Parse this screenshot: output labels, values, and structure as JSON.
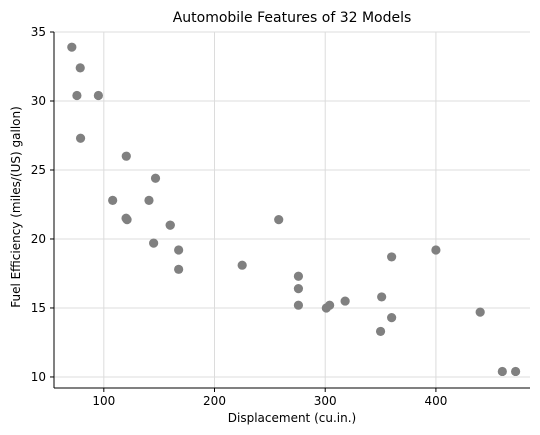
{
  "chart_data": {
    "type": "scatter",
    "title": "Automobile Features of 32 Models",
    "xlabel": "Displacement (cu.in.)",
    "ylabel": "Fuel Efficiency (miles/(US) gallon)",
    "xlim": [
      55,
      485
    ],
    "ylim": [
      9.2,
      35
    ],
    "xticks": [
      100,
      200,
      300,
      400
    ],
    "yticks": [
      10,
      15,
      20,
      25,
      30,
      35
    ],
    "grid": true,
    "point_color": "#808080",
    "points": [
      {
        "x": 160,
        "y": 21.0
      },
      {
        "x": 160,
        "y": 21.0
      },
      {
        "x": 108,
        "y": 22.8
      },
      {
        "x": 258,
        "y": 21.4
      },
      {
        "x": 360,
        "y": 18.7
      },
      {
        "x": 225,
        "y": 18.1
      },
      {
        "x": 360,
        "y": 14.3
      },
      {
        "x": 146.7,
        "y": 24.4
      },
      {
        "x": 140.8,
        "y": 22.8
      },
      {
        "x": 167.6,
        "y": 19.2
      },
      {
        "x": 167.6,
        "y": 17.8
      },
      {
        "x": 275.8,
        "y": 16.4
      },
      {
        "x": 275.8,
        "y": 17.3
      },
      {
        "x": 275.8,
        "y": 15.2
      },
      {
        "x": 472,
        "y": 10.4
      },
      {
        "x": 460,
        "y": 10.4
      },
      {
        "x": 440,
        "y": 14.7
      },
      {
        "x": 78.7,
        "y": 32.4
      },
      {
        "x": 75.7,
        "y": 30.4
      },
      {
        "x": 71.1,
        "y": 33.9
      },
      {
        "x": 120.1,
        "y": 21.5
      },
      {
        "x": 318,
        "y": 15.5
      },
      {
        "x": 304,
        "y": 15.2
      },
      {
        "x": 350,
        "y": 13.3
      },
      {
        "x": 400,
        "y": 19.2
      },
      {
        "x": 79,
        "y": 27.3
      },
      {
        "x": 120.3,
        "y": 26.0
      },
      {
        "x": 95.1,
        "y": 30.4
      },
      {
        "x": 351,
        "y": 15.8
      },
      {
        "x": 145,
        "y": 19.7
      },
      {
        "x": 301,
        "y": 15.0
      },
      {
        "x": 121,
        "y": 21.4
      }
    ]
  }
}
